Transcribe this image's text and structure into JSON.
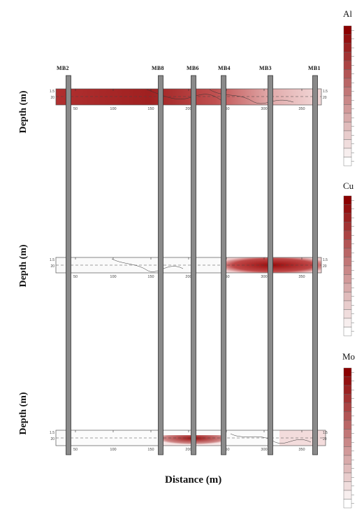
{
  "figure": {
    "xlabel": "Distance (m)",
    "panels": [
      {
        "ylabel": "Depth (m)",
        "element": "Al",
        "depth_ticks": [
          "1.5",
          "20"
        ],
        "x_ticks": [
          "50",
          "100",
          "150",
          "200",
          "250",
          "300",
          "350"
        ]
      },
      {
        "ylabel": "Depth (m)",
        "element": "Cu",
        "depth_ticks": [
          "1.5",
          "20"
        ],
        "x_ticks": [
          "50",
          "100",
          "150",
          "200",
          "250",
          "300",
          "350"
        ]
      },
      {
        "ylabel": "Depth (m)",
        "element": "Mo",
        "depth_ticks": [
          "1.5",
          "20"
        ],
        "x_ticks": [
          "50",
          "100",
          "150",
          "200",
          "250",
          "300",
          "350"
        ]
      }
    ],
    "wells": [
      "MB2",
      "MB8",
      "MB6",
      "MB4",
      "MB3",
      "MB1"
    ],
    "legends": [
      {
        "title": "Al",
        "levels": 16
      },
      {
        "title": "Cu",
        "levels": 16
      },
      {
        "title": "Mo",
        "levels": 16
      }
    ],
    "colors": {
      "ramp_low": "#ffffff",
      "ramp_high": "#8b0000",
      "well_fill": "#8a8a8a",
      "well_edge": "#333333"
    }
  }
}
